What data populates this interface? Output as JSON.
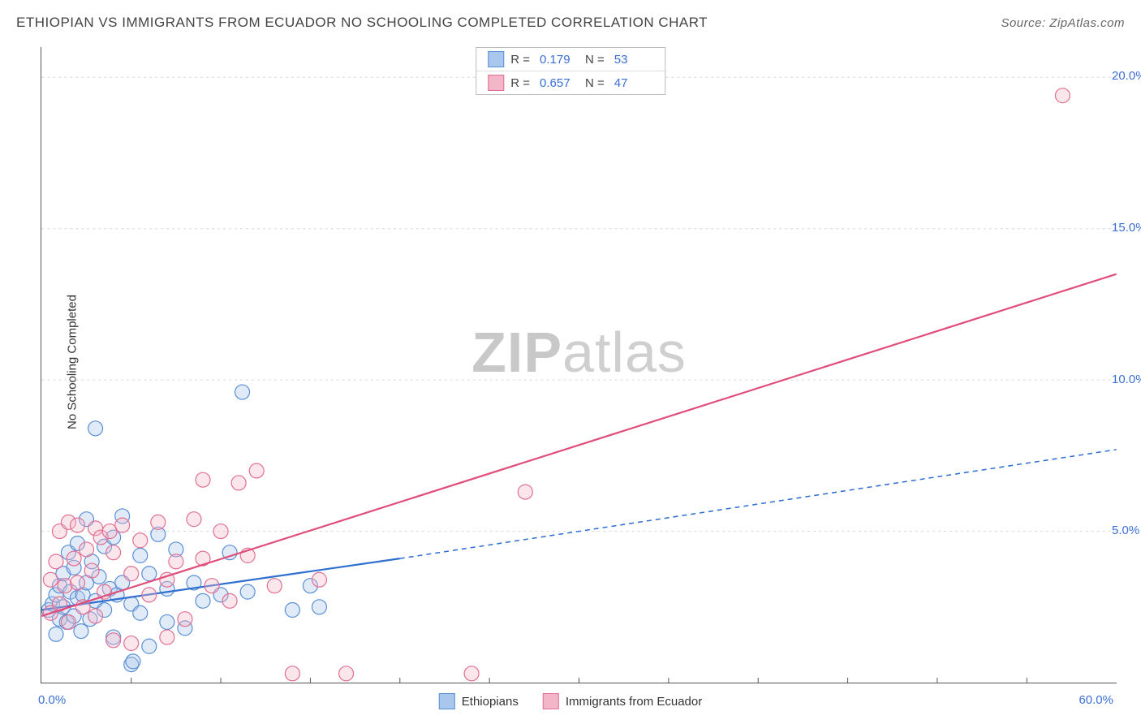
{
  "title": "ETHIOPIAN VS IMMIGRANTS FROM ECUADOR NO SCHOOLING COMPLETED CORRELATION CHART",
  "source_label": "Source: ZipAtlas.com",
  "ylabel": "No Schooling Completed",
  "watermark_a": "ZIP",
  "watermark_b": "atlas",
  "chart": {
    "type": "scatter-with-regression",
    "xlim": [
      0,
      60
    ],
    "ylim": [
      0,
      21
    ],
    "x_ticks_minor": [
      5,
      10,
      15,
      20,
      25,
      30,
      35,
      40,
      45,
      50,
      55
    ],
    "y_grid": [
      5,
      10,
      15,
      20
    ],
    "x_axis_labels": [
      {
        "v": 0,
        "text": "0.0%"
      },
      {
        "v": 60,
        "text": "60.0%"
      }
    ],
    "y_axis_labels": [
      {
        "v": 5,
        "text": "5.0%"
      },
      {
        "v": 10,
        "text": "10.0%"
      },
      {
        "v": 15,
        "text": "15.0%"
      },
      {
        "v": 20,
        "text": "20.0%"
      }
    ],
    "background_color": "#ffffff",
    "grid_color": "#d8d8d8",
    "grid_dash": "3,4",
    "axis_color": "#555555",
    "marker_radius": 9,
    "marker_stroke_width": 1.2,
    "marker_fill_opacity": 0.35,
    "line_width": 2.2,
    "series": [
      {
        "name": "Ethiopians",
        "color_stroke": "#5a8fd6",
        "color_fill": "#a9c7ec",
        "line_color": "#2f6fd0",
        "reg_solid": {
          "x1": 0,
          "y1": 2.4,
          "x2": 20,
          "y2": 4.1
        },
        "reg_dash": {
          "x1": 20,
          "y1": 4.1,
          "x2": 60,
          "y2": 7.7
        },
        "r_label": "R =",
        "r": "0.179",
        "n_label": "N =",
        "n": "53",
        "points": [
          [
            0.4,
            2.4
          ],
          [
            0.6,
            2.6
          ],
          [
            0.8,
            1.6
          ],
          [
            0.8,
            2.9
          ],
          [
            1.0,
            2.1
          ],
          [
            1.0,
            3.2
          ],
          [
            1.2,
            2.5
          ],
          [
            1.2,
            3.6
          ],
          [
            1.4,
            2.0
          ],
          [
            1.5,
            4.3
          ],
          [
            1.6,
            3.0
          ],
          [
            1.8,
            2.2
          ],
          [
            1.8,
            3.8
          ],
          [
            2.0,
            2.8
          ],
          [
            2.0,
            4.6
          ],
          [
            2.2,
            1.7
          ],
          [
            2.3,
            2.9
          ],
          [
            2.5,
            5.4
          ],
          [
            2.5,
            3.3
          ],
          [
            2.7,
            2.1
          ],
          [
            2.8,
            4.0
          ],
          [
            3.0,
            8.4
          ],
          [
            3.0,
            2.7
          ],
          [
            3.2,
            3.5
          ],
          [
            3.5,
            2.4
          ],
          [
            3.5,
            4.5
          ],
          [
            3.8,
            3.1
          ],
          [
            4.0,
            1.5
          ],
          [
            4.0,
            4.8
          ],
          [
            4.2,
            2.9
          ],
          [
            4.5,
            5.5
          ],
          [
            4.5,
            3.3
          ],
          [
            5.0,
            0.6
          ],
          [
            5.0,
            2.6
          ],
          [
            5.1,
            0.7
          ],
          [
            5.5,
            4.2
          ],
          [
            5.5,
            2.3
          ],
          [
            6.0,
            3.6
          ],
          [
            6.0,
            1.2
          ],
          [
            6.5,
            4.9
          ],
          [
            7.0,
            2.0
          ],
          [
            7.0,
            3.1
          ],
          [
            7.5,
            4.4
          ],
          [
            8.0,
            1.8
          ],
          [
            8.5,
            3.3
          ],
          [
            9.0,
            2.7
          ],
          [
            10.0,
            2.9
          ],
          [
            10.5,
            4.3
          ],
          [
            11.2,
            9.6
          ],
          [
            11.5,
            3.0
          ],
          [
            14.0,
            2.4
          ],
          [
            15.0,
            3.2
          ],
          [
            15.5,
            2.5
          ]
        ]
      },
      {
        "name": "Immigrants from Ecuador",
        "color_stroke": "#e16f93",
        "color_fill": "#f3b6c8",
        "line_color": "#e14d7b",
        "reg_solid": {
          "x1": 0,
          "y1": 2.2,
          "x2": 60,
          "y2": 13.5
        },
        "reg_dash": null,
        "r_label": "R =",
        "r": "0.657",
        "n_label": "N =",
        "n": "47",
        "points": [
          [
            0.5,
            2.3
          ],
          [
            0.5,
            3.4
          ],
          [
            0.8,
            4.0
          ],
          [
            1.0,
            2.6
          ],
          [
            1.0,
            5.0
          ],
          [
            1.3,
            3.2
          ],
          [
            1.5,
            5.3
          ],
          [
            1.5,
            2.0
          ],
          [
            1.8,
            4.1
          ],
          [
            2.0,
            3.3
          ],
          [
            2.0,
            5.2
          ],
          [
            2.3,
            2.5
          ],
          [
            2.5,
            4.4
          ],
          [
            2.8,
            3.7
          ],
          [
            3.0,
            5.1
          ],
          [
            3.0,
            2.2
          ],
          [
            3.3,
            4.8
          ],
          [
            3.5,
            3.0
          ],
          [
            3.8,
            5.0
          ],
          [
            4.0,
            1.4
          ],
          [
            4.0,
            4.3
          ],
          [
            4.5,
            5.2
          ],
          [
            5.0,
            3.6
          ],
          [
            5.0,
            1.3
          ],
          [
            5.5,
            4.7
          ],
          [
            6.0,
            2.9
          ],
          [
            6.5,
            5.3
          ],
          [
            7.0,
            3.4
          ],
          [
            7.0,
            1.5
          ],
          [
            7.5,
            4.0
          ],
          [
            8.0,
            2.1
          ],
          [
            8.5,
            5.4
          ],
          [
            9.0,
            6.7
          ],
          [
            9.5,
            3.2
          ],
          [
            10.0,
            5.0
          ],
          [
            10.5,
            2.7
          ],
          [
            11.0,
            6.6
          ],
          [
            11.5,
            4.2
          ],
          [
            12.0,
            7.0
          ],
          [
            13.0,
            3.2
          ],
          [
            14.0,
            0.3
          ],
          [
            15.5,
            3.4
          ],
          [
            17.0,
            0.3
          ],
          [
            24.0,
            0.3
          ],
          [
            27.0,
            6.3
          ],
          [
            57.0,
            19.4
          ],
          [
            9.0,
            4.1
          ]
        ]
      }
    ]
  },
  "legend_bottom": [
    {
      "label": "Ethiopians"
    },
    {
      "label": "Immigrants from Ecuador"
    }
  ]
}
